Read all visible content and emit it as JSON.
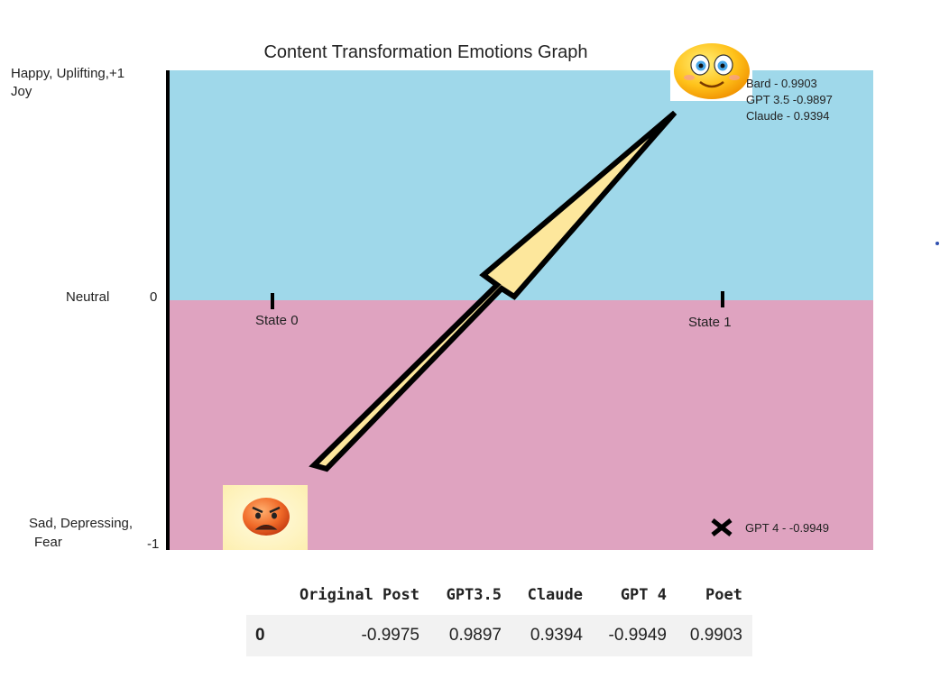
{
  "chart_data": {
    "type": "annotated-transition",
    "title": "Content Transformation Emotions Graph",
    "y_axis": {
      "range": [
        -1,
        1
      ],
      "labels": [
        {
          "text": "Happy, Uplifting,+1",
          "text2": "Joy",
          "value": 1
        },
        {
          "text": "Neutral",
          "num": "0",
          "value": 0
        },
        {
          "text": "Sad, Depressing,",
          "text2": "Fear",
          "num": "-1",
          "value": -1
        }
      ]
    },
    "x_axis": {
      "categories": [
        "State 0",
        "State 1"
      ]
    },
    "regions": [
      {
        "name": "positive",
        "from": 0,
        "to": 1,
        "color": "#9fd8ea"
      },
      {
        "name": "negative",
        "from": -1,
        "to": 0,
        "color": "#dfa3c0"
      }
    ],
    "annotations": [
      {
        "state": "State 1",
        "label": "Bard - 0.9903",
        "value": 0.9903
      },
      {
        "state": "State 1",
        "label": "GPT 3.5 -0.9897",
        "value": 0.9897
      },
      {
        "state": "State 1",
        "label": "Claude - 0.9394",
        "value": 0.9394
      },
      {
        "state": "State 1",
        "label": "GPT 4 - -0.9949",
        "value": -0.9949,
        "marker": "x"
      }
    ],
    "arrow": {
      "from_state": "State 0",
      "from_value": -0.9975,
      "to_state": "State 1",
      "to_value": 0.99,
      "fill": "#fde79c"
    },
    "icons": {
      "start": "angry-face-icon",
      "end": "smiley-face-icon"
    }
  },
  "table": {
    "columns": [
      "Original Post",
      "GPT3.5",
      "Claude",
      "GPT 4",
      "Poet"
    ],
    "rows": [
      {
        "index": "0",
        "values": [
          "-0.9975",
          "0.9897",
          "0.9394",
          "-0.9949",
          "0.9903"
        ]
      }
    ]
  }
}
